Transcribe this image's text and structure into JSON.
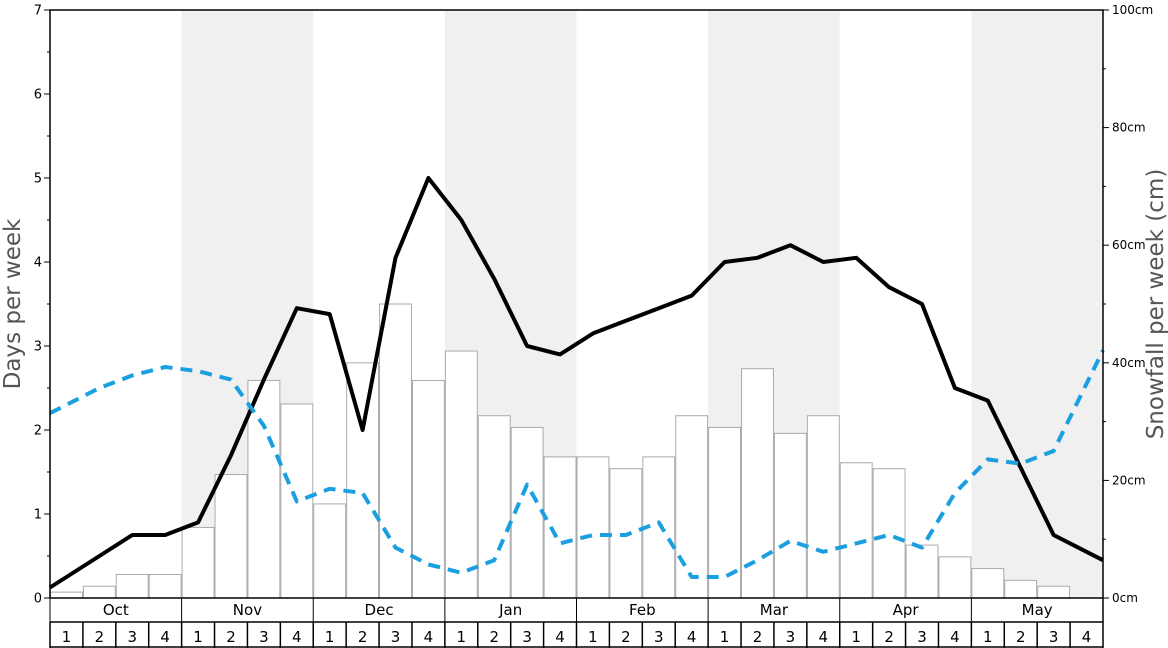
{
  "chart_data": {
    "type": "bar",
    "left_axis": {
      "label": "Days per week",
      "ylim": [
        0,
        7
      ],
      "ticks": [
        "0",
        "1",
        "2",
        "3",
        "4",
        "5",
        "6",
        "7"
      ]
    },
    "right_axis": {
      "label": "Snowfall per week (cm)",
      "ylim": [
        0,
        100
      ],
      "ticks": [
        "0cm",
        "20cm",
        "40cm",
        "60cm",
        "80cm",
        "100cm"
      ]
    },
    "months": [
      "Oct",
      "Nov",
      "Dec",
      "Jan",
      "Feb",
      "Mar",
      "Apr",
      "May"
    ],
    "week_labels": [
      "1",
      "2",
      "3",
      "4"
    ],
    "shaded_months": [
      "Nov",
      "Jan",
      "Mar",
      "May"
    ],
    "snowfall_cm": [
      1,
      2,
      4,
      4,
      12,
      21,
      37,
      33,
      16,
      40,
      50,
      37,
      42,
      31,
      29,
      24,
      24,
      22,
      24,
      31,
      29,
      39,
      28,
      31,
      23,
      22,
      9,
      7,
      5,
      3,
      2,
      0
    ],
    "series": [
      {
        "values": [
          0.25,
          0.5,
          0.75,
          0.75,
          0.9,
          1.7,
          2.6,
          3.45,
          3.38,
          2.0,
          4.05,
          5.0,
          4.5,
          3.8,
          3.0,
          2.9,
          3.15,
          3.3,
          3.45,
          3.6,
          4.0,
          4.05,
          4.2,
          4.0,
          4.05,
          3.7,
          3.5,
          2.5,
          2.35,
          1.55,
          0.75,
          0.55
        ],
        "style": "solid",
        "color": "#000000"
      },
      {
        "values": [
          2.3,
          2.5,
          2.65,
          2.75,
          2.7,
          2.6,
          2.05,
          1.15,
          1.3,
          1.25,
          0.6,
          0.4,
          0.3,
          0.45,
          1.35,
          0.65,
          0.75,
          0.75,
          0.9,
          0.25,
          0.25,
          0.45,
          0.68,
          0.55,
          0.65,
          0.75,
          0.6,
          1.25,
          1.65,
          1.6,
          1.75,
          2.55
        ],
        "style": "dashed",
        "color": "#1a9fe0"
      }
    ],
    "colors": {
      "shade": "#f0f0f0",
      "bar_fill": "#ffffff",
      "bar_stroke": "#aaaaaa"
    },
    "grid": false,
    "legend": "none"
  }
}
